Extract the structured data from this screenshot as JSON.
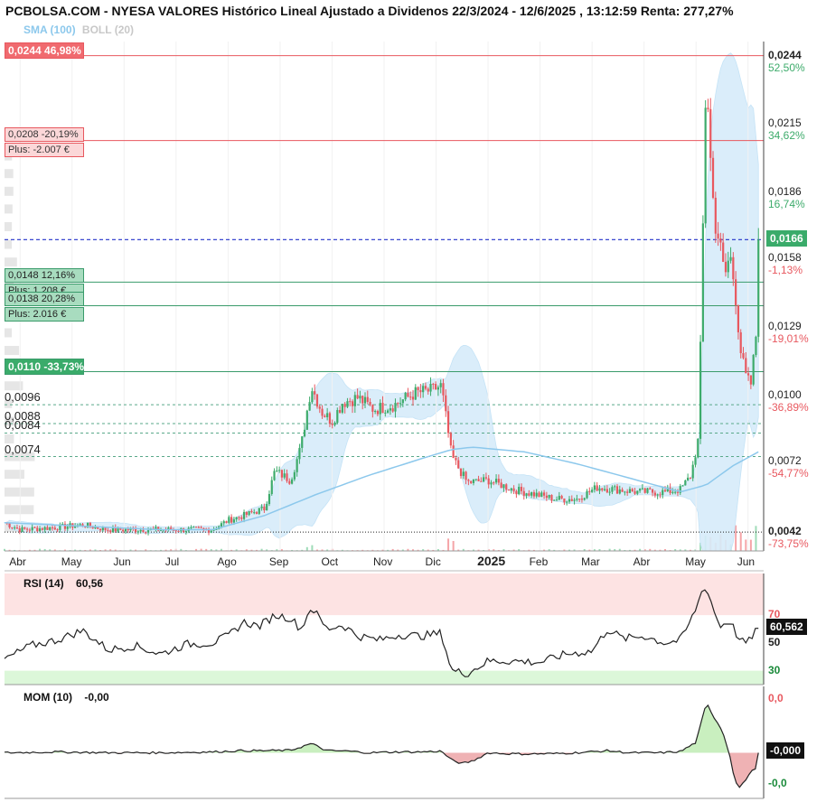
{
  "header": {
    "title": "PCBOLSA.COM - NYESA VALORES Histórico Lineal Ajustado a Dividenos 22/3/2024 - 12/6/2025 , 13:12:59 Renta: 277,27%",
    "sma_label": "SMA (100)",
    "boll_label": "BOLL (20)"
  },
  "colors": {
    "up": "#3dab6b",
    "down": "#e8585f",
    "sma": "#8cc8ec",
    "boll_fill": "#d6ecfa",
    "resistance": "#e8585f",
    "support": "#3a9b6b",
    "current": "#2231c9"
  },
  "levels": [
    {
      "id": "lvl-0244",
      "price": 0.0244,
      "text": "0,0244  46,98%",
      "style": "red-solid"
    },
    {
      "id": "lvl-0208",
      "price": 0.0208,
      "text": "0,0208  -20,19%",
      "sub": "Plus: -2.007 €",
      "style": "red-light"
    },
    {
      "id": "lvl-0148",
      "price": 0.0148,
      "text": "0,0148  12,16%",
      "sub": "Plus: 1.208 €",
      "style": "green-light"
    },
    {
      "id": "lvl-0138",
      "price": 0.0138,
      "text": "0,0138  20,28%",
      "sub": "Plus: 2.016 €",
      "style": "green-light"
    },
    {
      "id": "lvl-0110",
      "price": 0.011,
      "text": "0,0110  -33,73%",
      "style": "green-solid"
    },
    {
      "id": "lvl-0096",
      "price": 0.0096,
      "text": "0,0096",
      "style": "plain"
    },
    {
      "id": "lvl-0088",
      "price": 0.0088,
      "text": "0,0088",
      "style": "plain"
    },
    {
      "id": "lvl-0084",
      "price": 0.0084,
      "text": "0,0084",
      "style": "plain"
    },
    {
      "id": "lvl-0074",
      "price": 0.0074,
      "text": "0,0074",
      "style": "plain"
    }
  ],
  "current": {
    "price": 0.0166,
    "label": "0,0166"
  },
  "low_line": {
    "price": 0.0042
  },
  "y_axis": {
    "ylim": [
      0.0034,
      0.025
    ],
    "ticks": [
      {
        "price": 0.0244,
        "label": "0,0244",
        "pct": "52,50%",
        "pct_color": "#3dab6b",
        "bold": true
      },
      {
        "price": 0.0215,
        "label": "0,0215",
        "pct": "34,62%",
        "pct_color": "#3dab6b"
      },
      {
        "price": 0.0186,
        "label": "0,0186",
        "pct": "16,74%",
        "pct_color": "#3dab6b"
      },
      {
        "price": 0.0158,
        "label": "0,0158",
        "pct": "-1,13%",
        "pct_color": "#e8585f"
      },
      {
        "price": 0.0129,
        "label": "0,0129",
        "pct": "-19,01%",
        "pct_color": "#e8585f"
      },
      {
        "price": 0.01,
        "label": "0,0100",
        "pct": "-36,89%",
        "pct_color": "#e8585f"
      },
      {
        "price": 0.0072,
        "label": "0,0072",
        "pct": "-54,77%",
        "pct_color": "#e8585f"
      },
      {
        "price": 0.0042,
        "label": "0,0042",
        "pct": "-73,75%",
        "pct_color": "#e8585f",
        "bold": true
      }
    ]
  },
  "x_axis": {
    "labels": [
      {
        "t": 0.3,
        "text": "Abr"
      },
      {
        "t": 1.3,
        "text": "May"
      },
      {
        "t": 2.3,
        "text": "Jun"
      },
      {
        "t": 3.3,
        "text": "Jul"
      },
      {
        "t": 4.3,
        "text": "Ago"
      },
      {
        "t": 5.3,
        "text": "Sep"
      },
      {
        "t": 6.3,
        "text": "Oct"
      },
      {
        "t": 7.3,
        "text": "Nov"
      },
      {
        "t": 8.3,
        "text": "Dic"
      },
      {
        "t": 9.3,
        "text": "2025",
        "bold": true
      },
      {
        "t": 10.3,
        "text": "Feb"
      },
      {
        "t": 11.3,
        "text": "Mar"
      },
      {
        "t": 12.3,
        "text": "Abr"
      },
      {
        "t": 13.3,
        "text": "May"
      },
      {
        "t": 14.3,
        "text": "Jun"
      }
    ],
    "t_range": [
      0.0,
      14.6
    ]
  },
  "chart_data": {
    "type": "line",
    "title": "PCBOLSA.COM - NYESA VALORES Histórico Lineal Ajustado a Dividenos 22/3/2024 - 12/6/2025 , 13:12:59 Renta: 277,27%",
    "price_series_knots": [
      [
        0.0,
        0.0046
      ],
      [
        0.3,
        0.0043
      ],
      [
        1.0,
        0.0044
      ],
      [
        1.5,
        0.0045
      ],
      [
        2.0,
        0.0043
      ],
      [
        3.0,
        0.0043
      ],
      [
        3.6,
        0.0043
      ],
      [
        4.0,
        0.0043
      ],
      [
        4.3,
        0.0047
      ],
      [
        4.6,
        0.0049
      ],
      [
        5.0,
        0.0052
      ],
      [
        5.2,
        0.0068
      ],
      [
        5.5,
        0.0064
      ],
      [
        5.7,
        0.0078
      ],
      [
        5.9,
        0.0104
      ],
      [
        6.1,
        0.0093
      ],
      [
        6.3,
        0.0089
      ],
      [
        6.5,
        0.0097
      ],
      [
        6.8,
        0.0099
      ],
      [
        7.1,
        0.0094
      ],
      [
        7.5,
        0.0096
      ],
      [
        7.9,
        0.0101
      ],
      [
        8.2,
        0.0102
      ],
      [
        8.4,
        0.0104
      ],
      [
        8.6,
        0.0074
      ],
      [
        8.9,
        0.0063
      ],
      [
        9.3,
        0.0064
      ],
      [
        9.8,
        0.006
      ],
      [
        10.2,
        0.0058
      ],
      [
        10.6,
        0.0056
      ],
      [
        11.0,
        0.0056
      ],
      [
        11.4,
        0.0061
      ],
      [
        11.8,
        0.006
      ],
      [
        12.2,
        0.0059
      ],
      [
        12.7,
        0.0059
      ],
      [
        13.0,
        0.006
      ],
      [
        13.2,
        0.0066
      ],
      [
        13.35,
        0.0082
      ],
      [
        13.45,
        0.019
      ],
      [
        13.5,
        0.0244
      ],
      [
        13.55,
        0.021
      ],
      [
        13.65,
        0.0175
      ],
      [
        13.75,
        0.0165
      ],
      [
        13.85,
        0.015
      ],
      [
        13.95,
        0.016
      ],
      [
        14.05,
        0.0145
      ],
      [
        14.15,
        0.012
      ],
      [
        14.25,
        0.0108
      ],
      [
        14.35,
        0.0104
      ],
      [
        14.45,
        0.0124
      ],
      [
        14.5,
        0.0166
      ]
    ],
    "sma100_knots": [
      [
        0.0,
        0.0046
      ],
      [
        1.0,
        0.0045
      ],
      [
        2.0,
        0.0044
      ],
      [
        3.0,
        0.0043
      ],
      [
        4.0,
        0.0043
      ],
      [
        5.0,
        0.0049
      ],
      [
        6.0,
        0.0058
      ],
      [
        7.0,
        0.0066
      ],
      [
        8.0,
        0.0073
      ],
      [
        8.6,
        0.0077
      ],
      [
        9.0,
        0.0078
      ],
      [
        10.0,
        0.0076
      ],
      [
        11.0,
        0.0071
      ],
      [
        12.0,
        0.0065
      ],
      [
        13.0,
        0.0059
      ],
      [
        13.5,
        0.0062
      ],
      [
        14.0,
        0.007
      ],
      [
        14.5,
        0.0076
      ]
    ],
    "volume": {
      "ylim": [
        0,
        1
      ]
    },
    "rsi": {
      "name": "RSI (14)",
      "last": "60,56",
      "tag": "60,562",
      "levels": {
        "overbought": 70,
        "mid": 50,
        "oversold": 30
      },
      "knots": [
        [
          0.0,
          38
        ],
        [
          0.5,
          48
        ],
        [
          1.0,
          52
        ],
        [
          1.5,
          59
        ],
        [
          2.0,
          45
        ],
        [
          2.5,
          48
        ],
        [
          3.0,
          42
        ],
        [
          3.5,
          49
        ],
        [
          4.0,
          50
        ],
        [
          4.3,
          55
        ],
        [
          4.6,
          65
        ],
        [
          4.9,
          62
        ],
        [
          5.2,
          70
        ],
        [
          5.5,
          68
        ],
        [
          5.7,
          60
        ],
        [
          5.9,
          76
        ],
        [
          6.2,
          60
        ],
        [
          6.5,
          63
        ],
        [
          6.8,
          55
        ],
        [
          7.2,
          52
        ],
        [
          7.6,
          56
        ],
        [
          8.0,
          55
        ],
        [
          8.4,
          57
        ],
        [
          8.6,
          30
        ],
        [
          8.9,
          28
        ],
        [
          9.3,
          37
        ],
        [
          9.8,
          37
        ],
        [
          10.3,
          36
        ],
        [
          10.8,
          42
        ],
        [
          11.3,
          44
        ],
        [
          11.6,
          60
        ],
        [
          11.9,
          53
        ],
        [
          12.3,
          55
        ],
        [
          12.7,
          50
        ],
        [
          13.0,
          52
        ],
        [
          13.2,
          66
        ],
        [
          13.35,
          80
        ],
        [
          13.45,
          92
        ],
        [
          13.55,
          84
        ],
        [
          13.75,
          62
        ],
        [
          13.95,
          66
        ],
        [
          14.15,
          51
        ],
        [
          14.3,
          50
        ],
        [
          14.45,
          60
        ],
        [
          14.5,
          60.56
        ]
      ]
    },
    "mom": {
      "name": "MOM (10)",
      "last": "-0,00",
      "tag": "-0,000",
      "top_label": "0,0",
      "bottom_label": "-0,0",
      "ylim": [
        -1.1,
        1.6
      ],
      "knots": [
        [
          0.0,
          0.0
        ],
        [
          1.0,
          0.02
        ],
        [
          2.0,
          0.0
        ],
        [
          3.0,
          0.0
        ],
        [
          4.0,
          0.02
        ],
        [
          4.5,
          0.05
        ],
        [
          5.0,
          0.05
        ],
        [
          5.5,
          0.06
        ],
        [
          5.9,
          0.22
        ],
        [
          6.2,
          0.05
        ],
        [
          6.6,
          0.04
        ],
        [
          7.0,
          0.0
        ],
        [
          7.5,
          0.02
        ],
        [
          8.0,
          0.02
        ],
        [
          8.4,
          0.04
        ],
        [
          8.6,
          -0.18
        ],
        [
          8.8,
          -0.26
        ],
        [
          9.0,
          -0.2
        ],
        [
          9.3,
          0.0
        ],
        [
          9.6,
          -0.02
        ],
        [
          10.0,
          -0.03
        ],
        [
          10.6,
          -0.02
        ],
        [
          11.0,
          0.0
        ],
        [
          11.6,
          0.05
        ],
        [
          12.0,
          0.0
        ],
        [
          12.6,
          0.0
        ],
        [
          13.0,
          0.03
        ],
        [
          13.3,
          0.25
        ],
        [
          13.5,
          1.2
        ],
        [
          13.65,
          0.85
        ],
        [
          13.8,
          0.55
        ],
        [
          13.95,
          -0.05
        ],
        [
          14.05,
          -0.7
        ],
        [
          14.15,
          -0.85
        ],
        [
          14.3,
          -0.55
        ],
        [
          14.45,
          -0.35
        ],
        [
          14.5,
          0.0
        ]
      ]
    }
  }
}
